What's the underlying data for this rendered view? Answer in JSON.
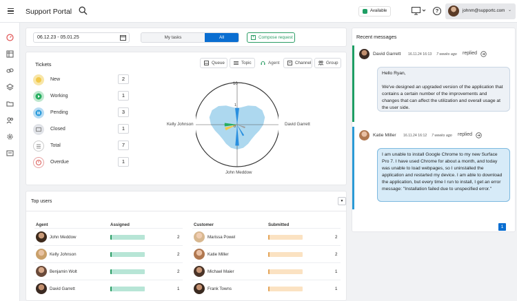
{
  "app": {
    "title": "Support Portal"
  },
  "header": {
    "status": "Available",
    "user_email": "johnm@supportc.com",
    "help_glyph": "?"
  },
  "filters": {
    "date_range": "06.12.23 - 05.01.25",
    "tabs": [
      {
        "label": "My tasks"
      },
      {
        "label": "All",
        "active": true
      }
    ],
    "compose_label": "Compose request"
  },
  "tickets": {
    "title": "Tickets",
    "rows": [
      {
        "label": "New",
        "count": "2",
        "color": "#f2c94c"
      },
      {
        "label": "Working",
        "count": "1",
        "color": "#27ae60"
      },
      {
        "label": "Pending",
        "count": "3",
        "color": "#2d9cdb"
      },
      {
        "label": "Closed",
        "count": "1",
        "color": "#bdbdbd"
      },
      {
        "label": "Total",
        "count": "7",
        "color": "#ffffff"
      },
      {
        "label": "Overdue",
        "count": "1",
        "color": "#ffffff"
      }
    ],
    "view_tabs": [
      {
        "label": "Queue",
        "icon": "inbox-icon"
      },
      {
        "label": "Topic",
        "icon": "list-icon"
      },
      {
        "label": "Agent",
        "icon": "headset-icon",
        "active": true
      },
      {
        "label": "Channel",
        "icon": "channel-icon"
      },
      {
        "label": "Group",
        "icon": "group-icon"
      }
    ]
  },
  "chart_data": {
    "type": "radar",
    "axes": [
      "John Meddow",
      "Kelly Johnson",
      "David Garrett"
    ],
    "top_tick": "10",
    "center_tick": "0",
    "small_tick": "1",
    "rmax": 10,
    "series": [
      {
        "color": "#2a8fdf",
        "segments": [
          [
            90,
            14,
            4
          ],
          [
            270,
            10,
            5
          ],
          [
            300,
            8,
            3
          ]
        ]
      },
      {
        "color": "#f2c94c",
        "segments": [
          [
            200,
            14,
            3
          ]
        ]
      },
      {
        "color": "#27ae60",
        "segments": [
          [
            180,
            16,
            3
          ]
        ]
      },
      {
        "color": "#9e9e9e",
        "segments": [
          [
            340,
            12,
            2
          ]
        ]
      }
    ]
  },
  "top_users": {
    "title": "Top users",
    "col_agent": "Agent",
    "col_assigned": "Assigned",
    "col_customer": "Customer",
    "col_submitted": "Submitted",
    "agents": [
      {
        "name": "John Meddow",
        "assigned": "2"
      },
      {
        "name": "Kelly Johnson",
        "assigned": "2"
      },
      {
        "name": "Benjamin Wolt",
        "assigned": "2"
      },
      {
        "name": "David Garrett",
        "assigned": "1"
      }
    ],
    "customers": [
      {
        "name": "Marissa Powel",
        "submitted": "2"
      },
      {
        "name": "Katie Miller",
        "submitted": "2"
      },
      {
        "name": "Michael Maier",
        "submitted": "1"
      },
      {
        "name": "Frank Towns",
        "submitted": "1"
      }
    ]
  },
  "recent_messages": {
    "title": "Recent messages",
    "messages": [
      {
        "name": "David Garrett",
        "date": "16.11.24 16:13",
        "ago": "7 weeks ago",
        "action": "replied",
        "body": "Hello Ryan,\n\nWe've designed an upgraded version of the application that contains a certain number of the improvements and changes that can affect the utilization and overall usage at the user side."
      },
      {
        "name": "Katie Miller",
        "date": "16.11.24 16:12",
        "ago": "7 weeks ago",
        "action": "replied",
        "body": "I am unable to install Google Chrome to my new Surface Pro 7. I have used Chrome for about a month, and today was unable to load webpages, so I uninstalled the application and restarted my device. I am able to download the application, but every time I run to install, I get an error message: \"Installation failed due to unspecified error.\""
      }
    ],
    "page": "1"
  }
}
